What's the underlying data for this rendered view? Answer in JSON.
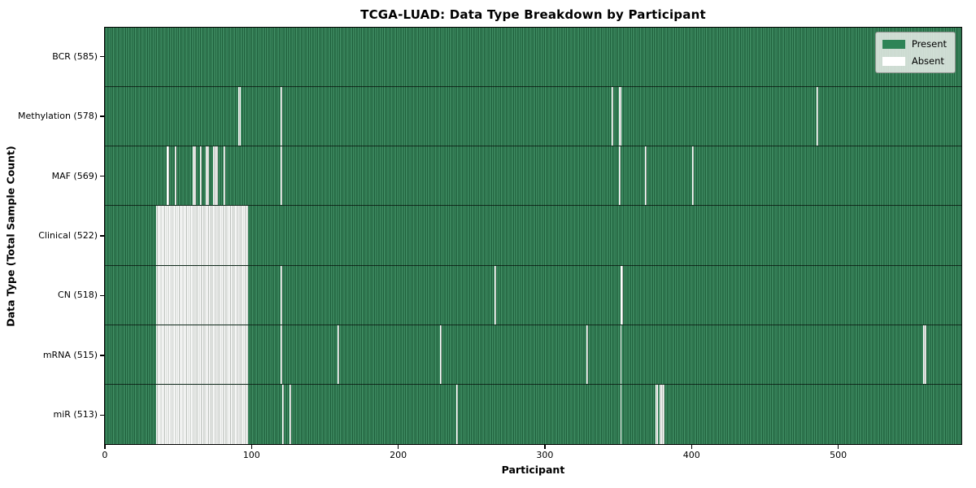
{
  "title": "TCGA-LUAD: Data Type Breakdown by Participant",
  "x_axis": {
    "label": "Participant",
    "ticks": [
      0,
      100,
      200,
      300,
      400,
      500
    ]
  },
  "y_axis": {
    "label": "Data Type (Total Sample Count)"
  },
  "legend": {
    "items": [
      {
        "label": "Present",
        "color": "#2e8457"
      },
      {
        "label": "Absent",
        "color": "#ffffff"
      }
    ]
  },
  "colors": {
    "present_dark": "#1d5c39",
    "present_mid": "#3a8a5f",
    "present_light": "#4f9c72",
    "absent": "#ffffff",
    "absent_line": "#b7bcb7",
    "legend_bg": "#eaedea"
  },
  "chart_data": {
    "type": "heatmap",
    "title": "TCGA-LUAD: Data Type Breakdown by Participant",
    "xlabel": "Participant",
    "ylabel": "Data Type (Total Sample Count)",
    "n_participants": 585,
    "x_range": [
      0,
      584
    ],
    "legend_position": "upper right",
    "grid": false,
    "cell_states": [
      "Present",
      "Absent"
    ],
    "rows": [
      {
        "name": "BCR",
        "label": "BCR (585)",
        "present_count": 585,
        "absent": []
      },
      {
        "name": "Methylation",
        "label": "Methylation (578)",
        "present_count": 578,
        "absent": [
          91,
          92,
          120,
          346,
          351,
          352,
          486
        ]
      },
      {
        "name": "MAF",
        "label": "MAF (569)",
        "present_count": 569,
        "absent": [
          42,
          43,
          48,
          60,
          61,
          65,
          69,
          70,
          74,
          75,
          76,
          81,
          120,
          351,
          369,
          401
        ]
      },
      {
        "name": "Clinical",
        "label": "Clinical (522)",
        "present_count": 522,
        "absent": [
          [
            35,
            97
          ]
        ]
      },
      {
        "name": "CN",
        "label": "CN (518)",
        "present_count": 518,
        "absent": [
          [
            35,
            97
          ],
          120,
          266,
          352,
          353
        ]
      },
      {
        "name": "mRNA",
        "label": "mRNA (515)",
        "present_count": 515,
        "absent": [
          [
            35,
            97
          ],
          120,
          159,
          229,
          329,
          352,
          559,
          560
        ]
      },
      {
        "name": "miR",
        "label": "miR (513)",
        "present_count": 513,
        "absent": [
          [
            35,
            97
          ],
          121,
          126,
          240,
          352,
          376,
          377,
          379,
          380,
          381
        ]
      }
    ]
  }
}
